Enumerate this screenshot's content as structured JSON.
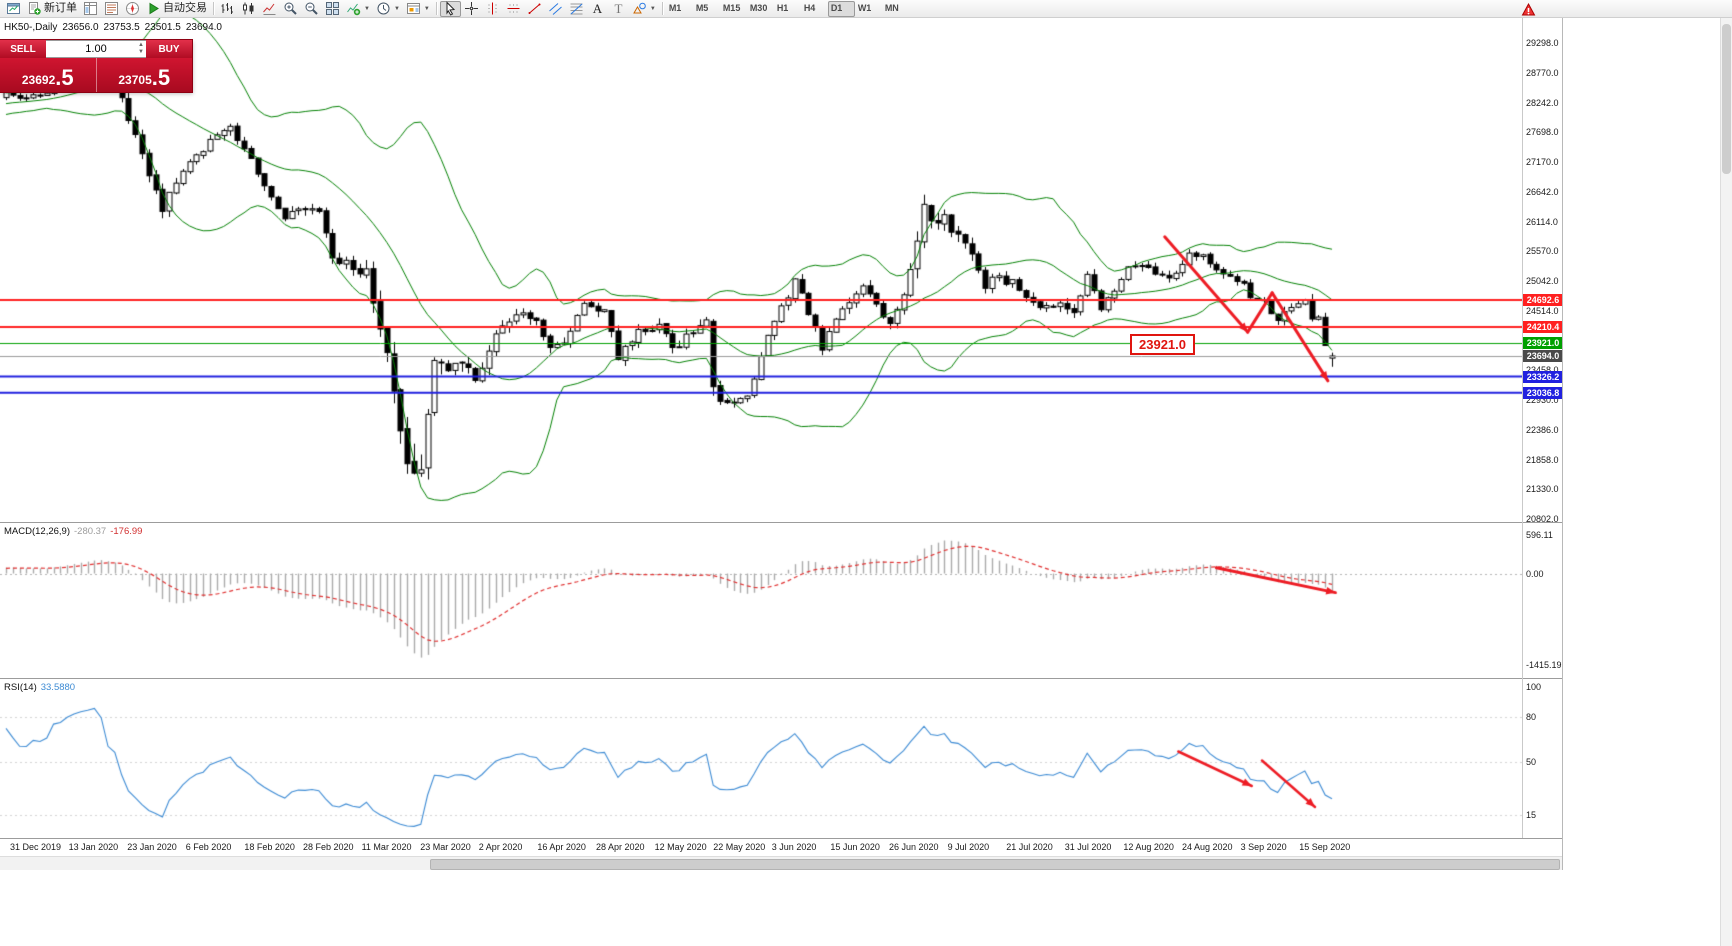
{
  "toolbar": {
    "groups": [
      {
        "name": "file",
        "items": [
          {
            "name": "new-chart",
            "icon": "chart-window"
          },
          {
            "name": "new-order",
            "icon": "new-order",
            "label": "新订单"
          },
          {
            "name": "market-watch",
            "icon": "market-watch"
          },
          {
            "name": "data-window",
            "icon": "data-window"
          },
          {
            "name": "navigator",
            "icon": "navigator"
          },
          {
            "name": "auto-trading",
            "icon": "autotrade",
            "label": "自动交易"
          }
        ]
      },
      {
        "name": "chart-tools",
        "items": [
          {
            "name": "bar-chart-mode",
            "icon": "bars"
          },
          {
            "name": "candle-chart-mode",
            "icon": "candles"
          },
          {
            "name": "line-chart-mode",
            "icon": "linechart"
          },
          {
            "name": "zoom-in",
            "icon": "zoom-in"
          },
          {
            "name": "zoom-out",
            "icon": "zoom-out"
          },
          {
            "name": "tile-windows",
            "icon": "tile"
          },
          {
            "name": "indicators-list",
            "icon": "indicators",
            "caret": true
          },
          {
            "name": "periods-list",
            "icon": "periods",
            "caret": true
          },
          {
            "name": "templates",
            "icon": "templates",
            "caret": true
          }
        ]
      },
      {
        "name": "line-studies",
        "items": [
          {
            "name": "cursor",
            "icon": "cursor",
            "active": true
          },
          {
            "name": "crosshair",
            "icon": "crosshair"
          },
          {
            "name": "vertical-line",
            "icon": "vline"
          },
          {
            "name": "horizontal-line",
            "icon": "hline"
          },
          {
            "name": "trendline",
            "icon": "trendline"
          },
          {
            "name": "equidistant-channel",
            "icon": "channel"
          },
          {
            "name": "fibonacci-retracement",
            "icon": "fibo"
          },
          {
            "name": "text",
            "icon": "text"
          },
          {
            "name": "text-label",
            "icon": "label"
          },
          {
            "name": "arrows",
            "icon": "shapes",
            "caret": true
          }
        ]
      },
      {
        "name": "timeframes",
        "items": [
          {
            "name": "tf-m1",
            "label": "M1"
          },
          {
            "name": "tf-m5",
            "label": "M5"
          },
          {
            "name": "tf-m15",
            "label": "M15"
          },
          {
            "name": "tf-m30",
            "label": "M30"
          },
          {
            "name": "tf-h1",
            "label": "H1"
          },
          {
            "name": "tf-h4",
            "label": "H4"
          },
          {
            "name": "tf-d1",
            "label": "D1",
            "active": true
          },
          {
            "name": "tf-w1",
            "label": "W1"
          },
          {
            "name": "tf-mn",
            "label": "MN"
          }
        ]
      }
    ],
    "alert_icon": "alert"
  },
  "chart": {
    "symbol": "HK50-,Daily",
    "ohlc": {
      "open": "23656.0",
      "high": "23753.5",
      "low": "23501.5",
      "close": "23694.0"
    },
    "trade_panel": {
      "sell_label": "SELL",
      "buy_label": "BUY",
      "volume": "1.00",
      "sell_price": "23692",
      "sell_pips": ".5",
      "buy_price": "23705",
      "buy_pips": ".5"
    },
    "price_axis": [
      "29298.0",
      "28770.0",
      "28242.0",
      "27698.0",
      "27170.0",
      "26642.0",
      "26114.0",
      "25570.0",
      "25042.0",
      "24514.0",
      "23986.0",
      "23458.0",
      "22930.0",
      "22386.0",
      "21858.0",
      "21330.0",
      "20802.0"
    ],
    "hlines": [
      {
        "value": 24692.6,
        "label": "24692.6",
        "color": "#ff2020",
        "width": 2
      },
      {
        "value": 24210.4,
        "label": "24210.4",
        "color": "#ff2020",
        "width": 2
      },
      {
        "value": 23921.0,
        "label": "23921.0",
        "color": "#00a000",
        "width": 1
      },
      {
        "value": 23326.2,
        "label": "23326.2",
        "color": "#2121df",
        "width": 2
      },
      {
        "value": 23036.8,
        "label": "23036.8",
        "color": "#2121df",
        "width": 2
      }
    ],
    "current_price": {
      "value": 23694.0,
      "label": "23694.0",
      "line_color": "#9a9a9a",
      "tag_bg": "#4a4a4a"
    },
    "annotation_box": {
      "text": "23921.0"
    },
    "trend_arrows": {
      "main": {
        "color": "#ed1c24",
        "width": 3,
        "points": [
          [
            170.4,
            25820
          ],
          [
            182.6,
            24120
          ],
          [
            186.2,
            24820
          ],
          [
            194.4,
            23250
          ]
        ],
        "heads": [
          1,
          3
        ]
      },
      "macd": {
        "color": "#ed1c24",
        "width": 3,
        "points": [
          [
            178,
            90
          ],
          [
            195.5,
            -295
          ]
        ],
        "heads": [
          1
        ]
      },
      "rsi": [
        {
          "color": "#ed1c24",
          "width": 2.5,
          "points": [
            [
              172.4,
              57
            ],
            [
              183.2,
              34
            ]
          ],
          "heads": [
            1
          ]
        },
        {
          "color": "#ed1c24",
          "width": 2.5,
          "points": [
            [
              184.7,
              51
            ],
            [
              192.5,
              20
            ]
          ],
          "heads": [
            1
          ]
        }
      ]
    }
  },
  "macd_panel": {
    "name": "MACD(12,26,9)",
    "value": "-280.37",
    "signal": "-176.99",
    "axis": [
      {
        "label": "596.11",
        "value": 596.11
      },
      {
        "label": "0.00",
        "value": 0
      },
      {
        "label": "-1415.19",
        "value": -1415.19
      }
    ],
    "histogram_color": "#ababab",
    "signal_color": "#e03131"
  },
  "rsi_panel": {
    "name": "RSI(14)",
    "value": "33.5880",
    "axis": [
      {
        "label": "100",
        "value": 100
      },
      {
        "label": "80",
        "value": 80
      },
      {
        "label": "50",
        "value": 50
      },
      {
        "label": "15",
        "value": 15
      }
    ],
    "line_color": "#3d8bd4",
    "levels": [
      80,
      50,
      15
    ]
  },
  "time_axis": [
    "31 Dec 2019",
    "13 Jan 2020",
    "23 Jan 2020",
    "6 Feb 2020",
    "18 Feb 2020",
    "28 Feb 2020",
    "11 Mar 2020",
    "23 Mar 2020",
    "2 Apr 2020",
    "16 Apr 2020",
    "28 Apr 2020",
    "12 May 2020",
    "22 May 2020",
    "3 Jun 2020",
    "15 Jun 2020",
    "26 Jun 2020",
    "9 Jul 2020",
    "21 Jul 2020",
    "31 Jul 2020",
    "12 Aug 2020",
    "24 Aug 2020",
    "3 Sep 2020",
    "15 Sep 2020"
  ],
  "chart_data": {
    "type": "candlestick",
    "symbol": "HK50",
    "timeframe": "Daily",
    "price_range": {
      "top": 29298.0,
      "bottom": 20802.0
    },
    "num_candles": 196,
    "candle_colors": {
      "up_fill": "#ffffff",
      "down_fill": "#000000",
      "outline": "#000000"
    },
    "close_keyframes": [
      [
        0,
        28400
      ],
      [
        3,
        28250
      ],
      [
        6,
        28420
      ],
      [
        8,
        28650
      ],
      [
        10,
        28850
      ],
      [
        13,
        29050
      ],
      [
        16,
        28600
      ],
      [
        18,
        27900
      ],
      [
        20,
        27250
      ],
      [
        23,
        26320
      ],
      [
        26,
        26950
      ],
      [
        29,
        27400
      ],
      [
        33,
        27800
      ],
      [
        37,
        27000
      ],
      [
        41,
        26150
      ],
      [
        44,
        26350
      ],
      [
        46,
        26200
      ],
      [
        48,
        25450
      ],
      [
        51,
        25300
      ],
      [
        53,
        25150
      ],
      [
        55,
        24100
      ],
      [
        57,
        23100
      ],
      [
        58,
        22350
      ],
      [
        59,
        21800
      ],
      [
        60,
        21450
      ],
      [
        61,
        21800
      ],
      [
        63,
        23450
      ],
      [
        65,
        23420
      ],
      [
        67,
        23600
      ],
      [
        69,
        23280
      ],
      [
        72,
        24150
      ],
      [
        75,
        24420
      ],
      [
        78,
        24300
      ],
      [
        80,
        23850
      ],
      [
        82,
        23950
      ],
      [
        85,
        24600
      ],
      [
        88,
        24550
      ],
      [
        90,
        23650
      ],
      [
        93,
        24150
      ],
      [
        96,
        24230
      ],
      [
        98,
        23820
      ],
      [
        100,
        24050
      ],
      [
        103,
        24280
      ],
      [
        104,
        23000
      ],
      [
        106,
        22880
      ],
      [
        109,
        22950
      ],
      [
        111,
        23750
      ],
      [
        113,
        24350
      ],
      [
        115,
        24800
      ],
      [
        116,
        25050
      ],
      [
        118,
        24480
      ],
      [
        120,
        23820
      ],
      [
        122,
        24420
      ],
      [
        124,
        24650
      ],
      [
        126,
        24900
      ],
      [
        128,
        24550
      ],
      [
        130,
        24300
      ],
      [
        131,
        24450
      ],
      [
        133,
        25150
      ],
      [
        135,
        26350
      ],
      [
        136,
        25980
      ],
      [
        138,
        26200
      ],
      [
        140,
        25800
      ],
      [
        142,
        25480
      ],
      [
        144,
        24980
      ],
      [
        146,
        25050
      ],
      [
        148,
        25050
      ],
      [
        150,
        24700
      ],
      [
        152,
        24600
      ],
      [
        155,
        24600
      ],
      [
        157,
        24480
      ],
      [
        159,
        25100
      ],
      [
        161,
        24550
      ],
      [
        163,
        24900
      ],
      [
        165,
        25230
      ],
      [
        167,
        25350
      ],
      [
        169,
        25180
      ],
      [
        171,
        25100
      ],
      [
        174,
        25480
      ],
      [
        176,
        25480
      ],
      [
        178,
        25180
      ],
      [
        180,
        25120
      ],
      [
        182,
        25000
      ],
      [
        183,
        24700
      ],
      [
        185,
        24620
      ],
      [
        186,
        24470
      ],
      [
        187,
        24310
      ],
      [
        188,
        24500
      ],
      [
        190,
        24640
      ],
      [
        191,
        24730
      ],
      [
        192,
        24340
      ],
      [
        193,
        24450
      ],
      [
        194,
        23950
      ],
      [
        195,
        23694
      ]
    ],
    "volatility_keyframes": [
      [
        0,
        170
      ],
      [
        15,
        200
      ],
      [
        18,
        260
      ],
      [
        23,
        300
      ],
      [
        28,
        220
      ],
      [
        36,
        220
      ],
      [
        41,
        260
      ],
      [
        48,
        300
      ],
      [
        53,
        380
      ],
      [
        56,
        520
      ],
      [
        58,
        650
      ],
      [
        60,
        900
      ],
      [
        62,
        650
      ],
      [
        64,
        500
      ],
      [
        67,
        380
      ],
      [
        72,
        300
      ],
      [
        80,
        260
      ],
      [
        88,
        280
      ],
      [
        95,
        250
      ],
      [
        102,
        280
      ],
      [
        104,
        520
      ],
      [
        106,
        300
      ],
      [
        112,
        280
      ],
      [
        116,
        300
      ],
      [
        120,
        280
      ],
      [
        126,
        250
      ],
      [
        131,
        280
      ],
      [
        134,
        420
      ],
      [
        136,
        420
      ],
      [
        139,
        350
      ],
      [
        143,
        320
      ],
      [
        148,
        260
      ],
      [
        155,
        240
      ],
      [
        160,
        260
      ],
      [
        166,
        220
      ],
      [
        172,
        200
      ],
      [
        178,
        210
      ],
      [
        183,
        240
      ],
      [
        187,
        230
      ],
      [
        191,
        230
      ],
      [
        195,
        260
      ]
    ],
    "last_candle": {
      "open": 23656.0,
      "high": 23753.5,
      "low": 23501.5,
      "close": 23694.0
    },
    "indicators": {
      "bollinger": {
        "period": 20,
        "deviation": 2,
        "color": "#008000"
      },
      "macd": {
        "fast": 12,
        "slow": 26,
        "signal": 9,
        "scale_max": 596.11,
        "scale_min": -1415.19
      },
      "rsi": {
        "period": 14,
        "last_value": 33.588
      }
    }
  }
}
